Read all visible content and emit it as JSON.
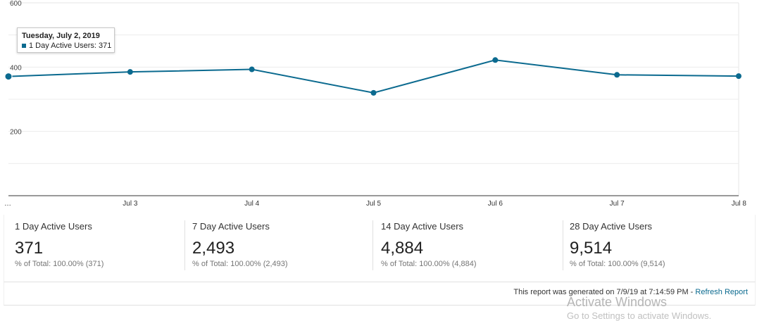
{
  "chart_data": {
    "type": "line",
    "x": [
      "…",
      "Jul 3",
      "Jul 4",
      "Jul 5",
      "Jul 6",
      "Jul 7",
      "Jul 8"
    ],
    "y_tick_labels": [
      "200",
      "400",
      "600"
    ],
    "ylim": [
      0,
      600
    ],
    "grid": true,
    "series": [
      {
        "name": "1 Day Active Users",
        "values": [
          371,
          385,
          393,
          320,
          422,
          376,
          372
        ]
      }
    ],
    "color": "#0b6a8f"
  },
  "tooltip": {
    "date": "Tuesday, July 2, 2019",
    "line": "1 Day Active Users: 371"
  },
  "metrics": [
    {
      "label": "1 Day Active Users",
      "value": "371",
      "sub": "% of Total: 100.00% (371)"
    },
    {
      "label": "7 Day Active Users",
      "value": "2,493",
      "sub": "% of Total: 100.00% (2,493)"
    },
    {
      "label": "14 Day Active Users",
      "value": "4,884",
      "sub": "% of Total: 100.00% (4,884)"
    },
    {
      "label": "28 Day Active Users",
      "value": "9,514",
      "sub": "% of Total: 100.00% (9,514)"
    }
  ],
  "footer": {
    "generated_text": "This report was generated on 7/9/19 at 7:14:59 PM - ",
    "refresh_label": "Refresh Report"
  },
  "watermark": {
    "line1": "Activate Windows",
    "line2": "Go to Settings to activate Windows."
  }
}
